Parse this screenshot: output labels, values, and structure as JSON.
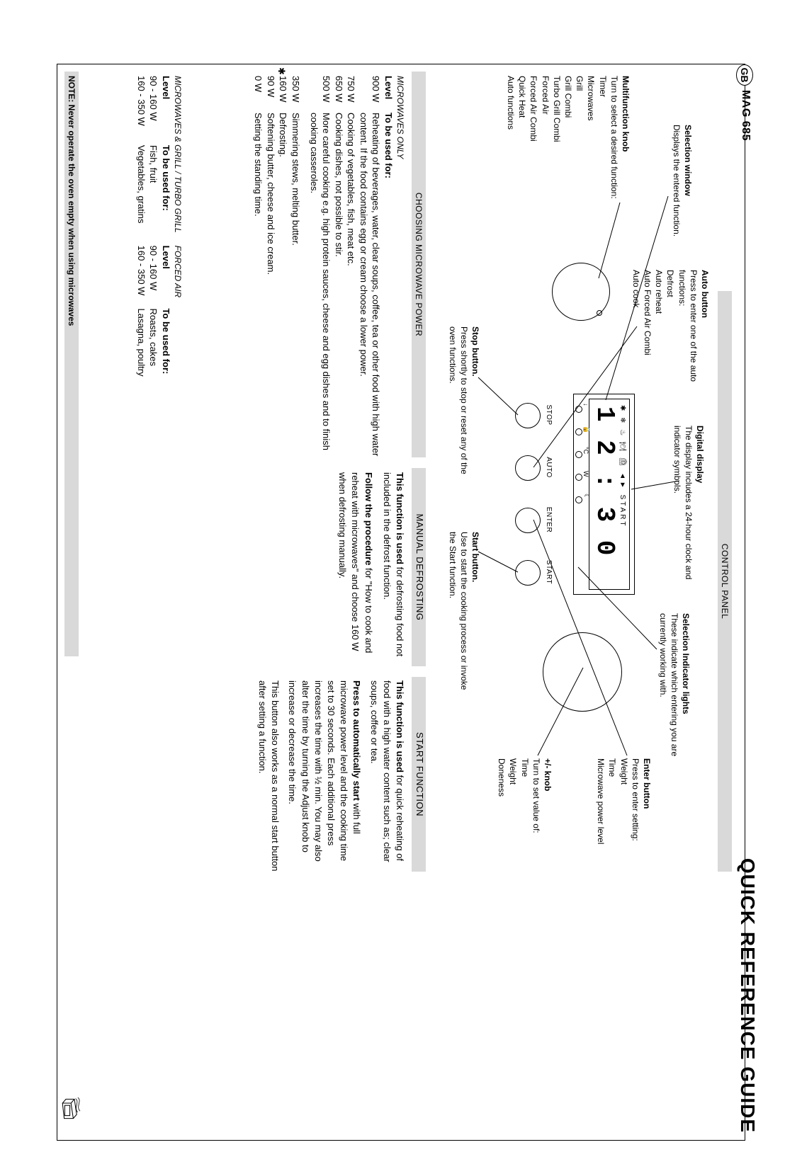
{
  "header": {
    "gb": "GB",
    "model": "MAG 685",
    "title": "QUICK REFERENCE GUIDE"
  },
  "sections": {
    "control": "CONTROL PANEL",
    "choosing": "CHOOSING MICROWAVE POWER",
    "manual": "MANUAL DEFROSTING",
    "startfn": "START FUNCTION"
  },
  "note": "NOTE: Never operate the oven empty when using microwaves",
  "panel": {
    "icons_row": "✱  ❄  ♨  🍽  ⏲  ◄► START",
    "digits": "1 2 : 3 0",
    "indicator_labels": [
      "↓",
      "🔒",
      "°C",
      "W",
      "☾"
    ],
    "btn": {
      "stop": "STOP",
      "auto": "AUTO",
      "enter": "ENTER",
      "start": "START"
    }
  },
  "callouts": {
    "selwin": {
      "t": "Selection window",
      "b": "Displays the entered function."
    },
    "autobtn": {
      "t": "Auto button",
      "b": "Press to enter one of the auto functions:",
      "items": [
        "Defrost",
        "Auto reheat",
        "Auto Forced Air Combi",
        "Auto cook"
      ]
    },
    "digital": {
      "t": "Digital display",
      "b": "The display includes a 24-hour clock and indicator symbols."
    },
    "indicator": {
      "t": "Selection Indicator lights",
      "b": "These indicate which entering you are currently working with."
    },
    "enter": {
      "t": "Enter button",
      "b": "Press to enter setting:",
      "items": [
        "Weight",
        "Time",
        "Microwave power level"
      ]
    },
    "knob": {
      "t": "+/- knob",
      "b": "Turn to set value of:",
      "items": [
        "Time",
        "Weight",
        "Doneness"
      ]
    },
    "multi": {
      "t": "Multifunction knob",
      "b": "Turn to select a desired function:",
      "items": [
        "Timer",
        "Microwaves",
        "Grill",
        "Grill Combi",
        "Turbo Grill Combi",
        "Forced Air",
        "Forced Air Combi",
        "Quick Heat",
        "Auto functions"
      ]
    },
    "stop": {
      "t": "Stop button.",
      "b": "Press shortly to stop or reset any of the oven functions."
    },
    "start": {
      "t": "Start button.",
      "b": "Use to start the cooking process or invoke the Start function."
    }
  },
  "power": {
    "header": "MICROWAVES ONLY",
    "lvl": "Level",
    "used": "To be used for:",
    "rows": [
      {
        "lv": "900 W",
        "d": "Reheating of beverages, water, clear soups, coffee, tea or other food with high water content. If the food contains egg or cream choose a lower power."
      },
      {
        "lv": "750 W",
        "d": "Cooking of vegetables, fish, meat etc."
      },
      {
        "lv": "650 W",
        "d": "Cooking dishes, not possible to stir."
      },
      {
        "lv": "500 W",
        "d": "More careful cooking e.g. high protein sauces, cheese and egg dishes and to finish cooking casseroles."
      },
      {
        "lv": "350 W",
        "d": "Simmering stews, melting butter."
      },
      {
        "lv": "160 W",
        "d": "Defrosting.",
        "ast": true
      },
      {
        "lv": "90 W",
        "d": "Softening butter, cheese and ice cream."
      },
      {
        "lv": "0 W",
        "d": "Setting the standing time."
      }
    ]
  },
  "grill": {
    "h1": "MICROWAVES & GRILL / TURBO GRILL",
    "h2": "FORCED AIR",
    "lvl": "Level",
    "used": "To be used for:",
    "rows": [
      {
        "lv1": "90 - 160 W",
        "d1": "Fish, fruit",
        "lv2": "90 - 160 W",
        "d2": "Roasts, cakes"
      },
      {
        "lv1": "160 - 350 W",
        "d1": "Vegetables, gratins",
        "lv2": "160 - 350 W",
        "d2": "Lasagna, poultry"
      }
    ]
  },
  "manual": {
    "p1a": "This function is used",
    "p1b": " for defrosting food not included in the defrost function.",
    "p2a": "Follow the procedure",
    "p2b": " for \"How to cook and reheat with microwaves\" and choose 160 W when defrosting manually."
  },
  "startfn": {
    "p1a": "This function is used",
    "p1b": " for quick reheating of food with a high water content such as; clear soups, coffee or tea.",
    "p2a": "Press to automatically start",
    "p2b": " with full microwave power level and the cooking time set to 30 seconds. Each additional press increases the time with ½ min. You may also alter the time by turning the Adjust knob to increase or decrease the time.",
    "p3": "This button also works as a normal start button after setting a function."
  }
}
